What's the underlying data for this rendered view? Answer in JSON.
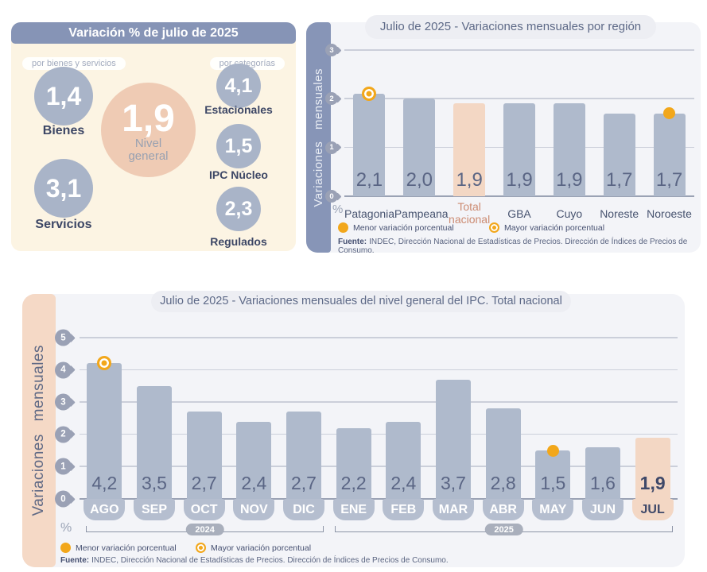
{
  "summary_panel": {
    "title": "Variación % de julio de 2025",
    "tag_left": "por bienes y servicios",
    "tag_right": "por categorías",
    "center_bubble": {
      "value": "1,9",
      "label_line1": "Nivel",
      "label_line2": "general"
    },
    "bienes": {
      "value": "1,4",
      "label": "Bienes"
    },
    "servicios": {
      "value": "3,1",
      "label": "Servicios"
    },
    "estacionales": {
      "value": "4,1",
      "label": "Estacionales"
    },
    "ipc_nucleo": {
      "value": "1,5",
      "label": "IPC Núcleo"
    },
    "regulados": {
      "value": "2,3",
      "label": "Regulados"
    }
  },
  "region_chart": {
    "title": "Julio de 2025 - Variaciones mensuales por región",
    "y_axis_label": "Variaciones mensuales",
    "percent_sign": "%",
    "legend": {
      "min_label": "Menor variación porcentual",
      "max_label": "Mayor variación porcentual"
    },
    "source_label": "Fuente:",
    "source_text": "INDEC, Dirección Nacional de Estadísticas de Precios. Dirección de Índices de Precios de Consumo."
  },
  "monthly_chart": {
    "title": "Julio de 2025 - Variaciones mensuales del nivel general del IPC. Total nacional",
    "y_axis_label": "Variaciones mensuales",
    "percent_sign": "%",
    "legend": {
      "min_label": "Menor variación porcentual",
      "max_label": "Mayor variación porcentual"
    },
    "source_label": "Fuente:",
    "source_text": "INDEC, Dirección Nacional de Estadísticas de Precios. Dirección de Índices de Precios de Consumo."
  },
  "colors": {
    "bar": "#AFBACC",
    "bar_highlight": "#F3D7C4",
    "header_blue": "#8694B6",
    "band_blue": "#8795B7",
    "band_peach": "#F5D9C6",
    "panel_cream": "#FCF4E3",
    "panel_gray": "#F3F4F8",
    "bubble_gray": "#A9B4C8",
    "bubble_peach": "#EFCBB4",
    "marker_orange": "#F2A71B",
    "text_dark": "#3F4969",
    "text_value": "#5A6584",
    "text_peach": "#CC8B72"
  },
  "chart_data": [
    {
      "type": "bar",
      "title": "Julio de 2025 - Variaciones mensuales por región",
      "categories": [
        "Patagonia",
        "Pampeana",
        "Total nacional",
        "GBA",
        "Cuyo",
        "Noreste",
        "Noroeste"
      ],
      "values": [
        2.1,
        2.0,
        1.9,
        1.9,
        1.9,
        1.7,
        1.7
      ],
      "xlabel": "",
      "ylabel": "Variaciones mensuales",
      "ylim": [
        0,
        3
      ],
      "yticks": [
        0,
        1,
        2,
        3
      ],
      "grid": true,
      "legend_position": "bottom",
      "highlight_index": 2,
      "max_marker_index": 0,
      "min_marker_index": 6,
      "annotations": {
        "max": "Patagonia 2,1 (mayor variación porcentual)",
        "min": "Noroeste 1,7 (menor variación porcentual)"
      }
    },
    {
      "type": "bar",
      "title": "Julio de 2025 - Variaciones mensuales del nivel general del IPC. Total nacional",
      "categories": [
        "AGO",
        "SEP",
        "OCT",
        "NOV",
        "DIC",
        "ENE",
        "FEB",
        "MAR",
        "ABR",
        "MAY",
        "JUN",
        "JUL"
      ],
      "values": [
        4.2,
        3.5,
        2.7,
        2.4,
        2.7,
        2.2,
        2.4,
        3.7,
        2.8,
        1.5,
        1.6,
        1.9
      ],
      "xlabel": "",
      "ylabel": "Variaciones mensuales",
      "ylim": [
        0,
        5
      ],
      "yticks": [
        0,
        1,
        2,
        3,
        4,
        5
      ],
      "grid": true,
      "legend_position": "bottom",
      "highlight_index": 11,
      "max_marker_index": 0,
      "min_marker_index": 9,
      "year_groups": [
        {
          "label": "2024",
          "from_index": 0,
          "to_index": 4
        },
        {
          "label": "2025",
          "from_index": 5,
          "to_index": 11
        }
      ],
      "annotations": {
        "max": "AGO 4,2 (mayor variación porcentual)",
        "min": "MAY 1,5 (menor variación porcentual)"
      }
    },
    {
      "type": "table",
      "title": "Variación % de julio de 2025",
      "columns": [
        "Categoría",
        "Variación %"
      ],
      "rows": [
        [
          "Nivel general",
          "1,9"
        ],
        [
          "Bienes",
          "1,4"
        ],
        [
          "Servicios",
          "3,1"
        ],
        [
          "Estacionales",
          "4,1"
        ],
        [
          "IPC Núcleo",
          "1,5"
        ],
        [
          "Regulados",
          "2,3"
        ]
      ]
    }
  ]
}
